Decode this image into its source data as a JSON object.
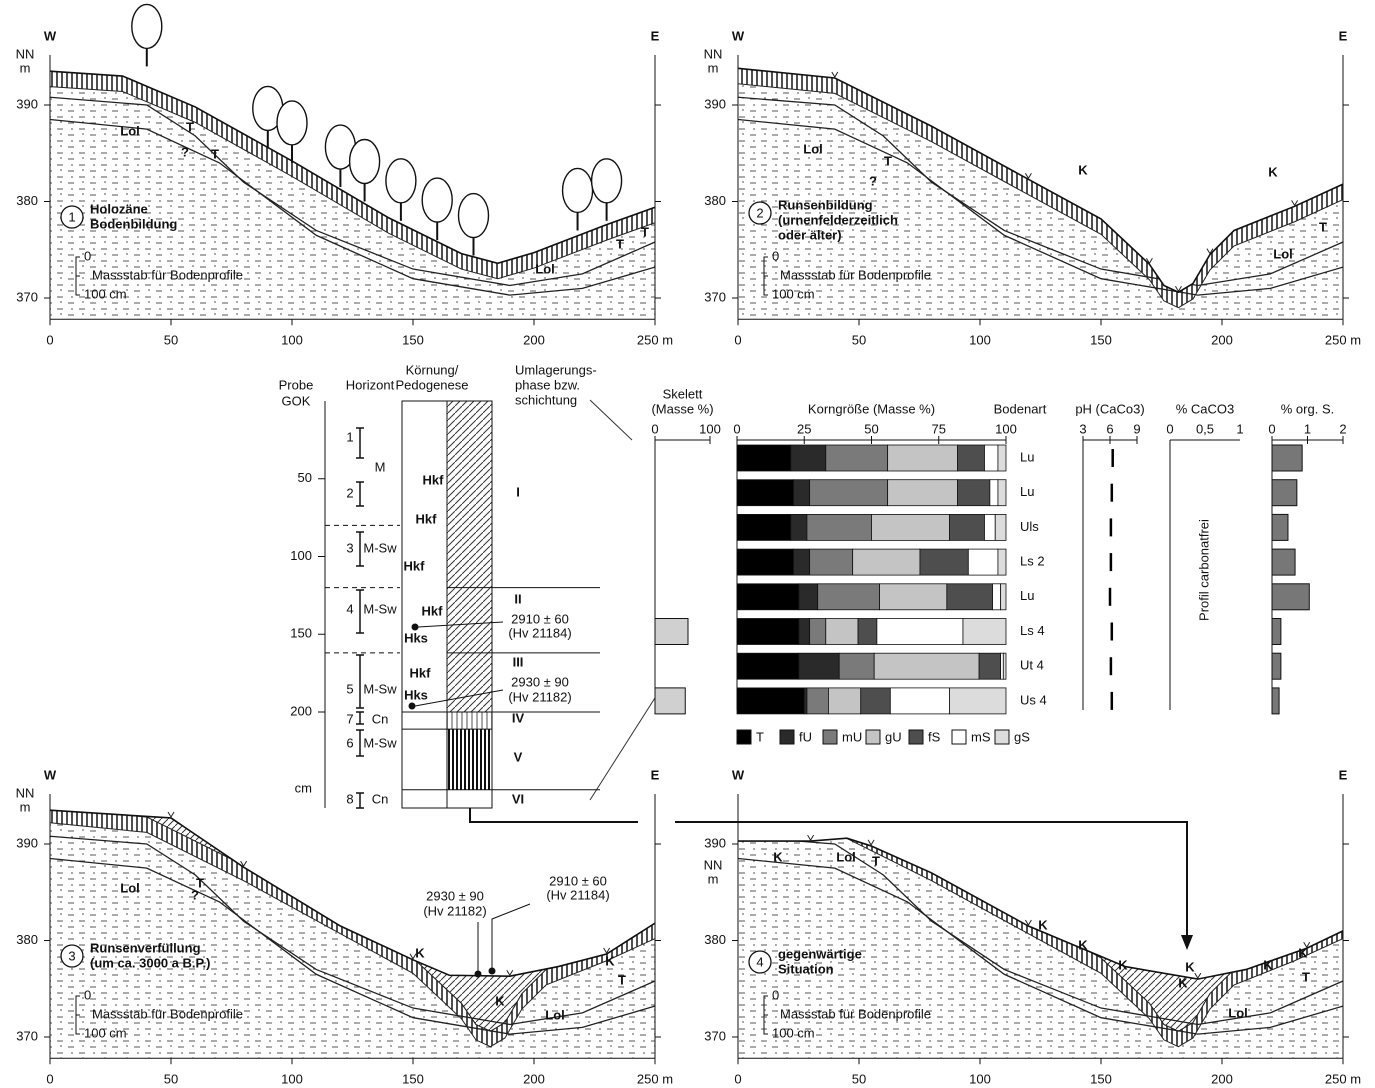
{
  "panels": [
    {
      "number": "1",
      "title": [
        "Holozäne",
        "Bodenbildung"
      ],
      "west": "W",
      "east": "E",
      "elevation_unit": [
        "NN",
        "m"
      ],
      "yticks": [
        "390",
        "380",
        "370"
      ],
      "xticks": [
        "0",
        "50",
        "100",
        "150",
        "200",
        "250 m"
      ],
      "scale": [
        "0",
        "Massstab für Bodenprofile",
        "100 cm"
      ],
      "labels": [
        "Lol",
        "T",
        "?",
        "T",
        "Lol",
        "T",
        "T"
      ]
    },
    {
      "number": "2",
      "title": [
        "Runsenbildung",
        "(urnenfelderzeitlich",
        "oder älter)"
      ],
      "west": "W",
      "east": "E",
      "elevation_unit": [
        "NN",
        "m"
      ],
      "yticks": [
        "390",
        "380",
        "370"
      ],
      "xticks": [
        "0",
        "50",
        "100",
        "150",
        "200",
        "250 m"
      ],
      "scale": [
        "0",
        "Massstab für Bodenprofile",
        "100 cm"
      ],
      "labels": [
        "Lol",
        "T",
        "?",
        "K",
        "K",
        "T",
        "Lol"
      ]
    },
    {
      "number": "3",
      "title": [
        "Runsenverfüllung",
        "(um ca. 3000 a B.P.)"
      ],
      "west": "W",
      "east": "E",
      "elevation_unit": [
        "NN",
        "m"
      ],
      "yticks": [
        "390",
        "380",
        "370"
      ],
      "xticks": [
        "0",
        "50",
        "100",
        "150",
        "200",
        "250 m"
      ],
      "scale": [
        "0",
        "Massstab für Bodenprofile",
        "100 cm"
      ],
      "labels": [
        "Lol",
        "T",
        "?",
        "K",
        "K",
        "K",
        "T",
        "Lol"
      ],
      "dates": [
        "2930 ± 90",
        "(Hv 21182)",
        "2910 ± 60",
        "(Hv 21184)"
      ]
    },
    {
      "number": "4",
      "title": [
        "gegenwärtige",
        "Situation"
      ],
      "west": "W",
      "east": "E",
      "elevation_unit": [
        "NN",
        "m"
      ],
      "yticks": [
        "390",
        "380",
        "370"
      ],
      "xticks": [
        "0",
        "50",
        "100",
        "150",
        "200",
        "250 m"
      ],
      "scale": [
        "0",
        "Massstab für Bodenprofile",
        "100 cm"
      ],
      "labels": [
        "K",
        "Lol",
        "T",
        "K",
        "K",
        "K",
        "K",
        "K",
        "K",
        "K",
        "T",
        "Lol"
      ]
    }
  ],
  "profile": {
    "headers": [
      "Probe",
      "GOK",
      "Horizont",
      "Körnung/",
      "Pedogenese",
      "Umlagerungs-",
      "phase bzw.",
      "schichtung"
    ],
    "depth_ticks": [
      "50",
      "100",
      "150",
      "200"
    ],
    "depth_unit": "cm",
    "samples": [
      "1",
      "2",
      "3",
      "4",
      "5",
      "7",
      "6",
      "8"
    ],
    "horizons": [
      "M",
      "M-Sw",
      "M-Sw",
      "M-Sw",
      "Cn",
      "M-Sw",
      "Cn"
    ],
    "phases": [
      "I",
      "II",
      "III",
      "IV",
      "V",
      "VI"
    ],
    "features": [
      "Hkf",
      "Hkf",
      "Hkf",
      "Hkf",
      "Hks",
      "Hkf",
      "Hks"
    ],
    "dates": [
      "2910 ± 60",
      "(Hv 21184)",
      "2930 ± 90",
      "(Hv 21182)"
    ]
  },
  "carbonate": {
    "title": "% CaCO3",
    "ticks": [
      "0",
      "0,5",
      "1"
    ],
    "note": "Profil carbonatfrei"
  },
  "chart_data": [
    {
      "type": "bar",
      "orientation": "horizontal",
      "stacked": true,
      "title": "Korngröße (Masse %)",
      "category_label": "Bodenart",
      "categories": [
        "Lu",
        "Lu",
        "Uls",
        "Ls 2",
        "Lu",
        "Ls 4",
        "Ut 4",
        "Us 4"
      ],
      "series": [
        {
          "name": "T",
          "color": "#000000",
          "values": [
            20,
            21,
            20,
            21,
            23,
            23,
            23,
            25
          ]
        },
        {
          "name": "fU",
          "color": "#2a2a2a",
          "values": [
            13,
            6,
            6,
            6,
            7,
            4,
            15,
            1
          ]
        },
        {
          "name": "mU",
          "color": "#7a7a7a",
          "values": [
            23,
            29,
            24,
            16,
            23,
            6,
            13,
            8
          ]
        },
        {
          "name": "gU",
          "color": "#c4c4c4",
          "values": [
            26,
            26,
            29,
            25,
            25,
            12,
            39,
            12
          ]
        },
        {
          "name": "fS",
          "color": "#4e4e4e",
          "values": [
            10,
            12,
            13,
            18,
            17,
            7,
            8,
            11
          ]
        },
        {
          "name": "mS",
          "color": "#ffffff",
          "values": [
            5,
            3,
            4,
            11,
            3,
            32,
            1,
            22
          ]
        },
        {
          "name": "gS",
          "color": "#dcdcdc",
          "values": [
            3,
            3,
            4,
            3,
            2,
            16,
            1,
            21
          ]
        }
      ],
      "xlim": [
        0,
        100
      ],
      "xticks": [
        0,
        25,
        50,
        75,
        100
      ]
    },
    {
      "type": "bar",
      "orientation": "horizontal",
      "title": [
        "Skelett",
        "(Masse %)"
      ],
      "values": [
        0,
        0,
        0,
        0,
        0,
        60,
        0,
        55
      ],
      "color": "#d0d0d0",
      "xlim": [
        0,
        100
      ],
      "xticks": [
        0,
        100
      ]
    },
    {
      "type": "strip",
      "title": "pH (CaCo3)",
      "values": [
        6.3,
        6.2,
        6.1,
        6.1,
        6.0,
        6.2,
        6.1,
        6.2
      ],
      "color": "#000000",
      "xlim": [
        3,
        9
      ],
      "xticks": [
        3,
        6,
        9
      ]
    },
    {
      "type": "bar",
      "orientation": "horizontal",
      "title": "% org. S.",
      "values": [
        0.85,
        0.7,
        0.45,
        0.65,
        1.05,
        0.25,
        0.25,
        0.2
      ],
      "color": "#777777",
      "xlim": [
        0,
        2
      ],
      "xticks": [
        0,
        1,
        2
      ]
    }
  ]
}
